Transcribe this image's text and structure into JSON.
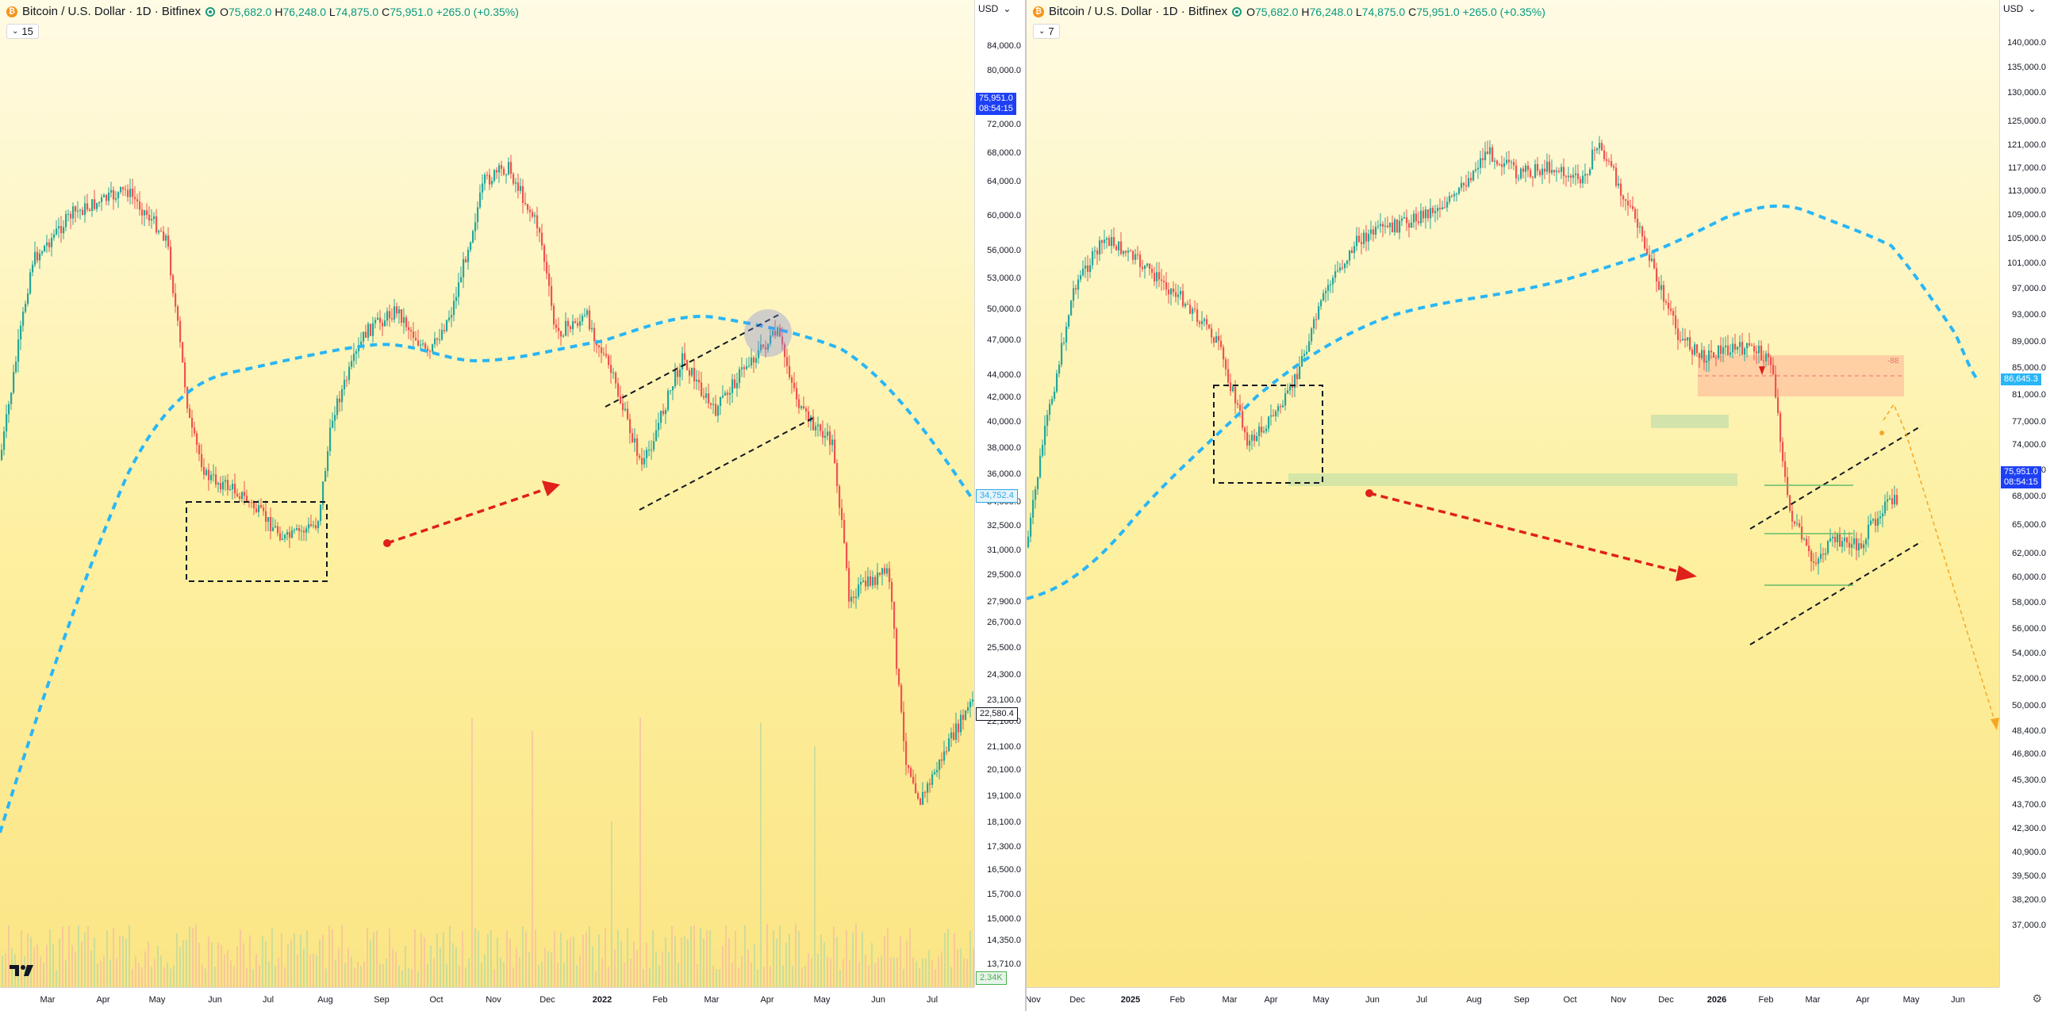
{
  "left_pane": {
    "title": "Bitcoin / U.S. Dollar · 1D · Bitfinex",
    "ohlc": {
      "o_label": "O",
      "o": "75,682.0",
      "h_label": "H",
      "h": "76,248.0",
      "l_label": "L",
      "l": "74,875.0",
      "c_label": "C",
      "c": "75,951.0",
      "change": "+265.0 (+0.35%)"
    },
    "indicator_count": "15",
    "currency": "USD",
    "price_tag": {
      "price": "75,951.0",
      "countdown": "08:54:15"
    },
    "ma_tag": "34,752.4",
    "cursor_tag": "22,580.4",
    "volume_tag": "2.34K",
    "y_ticks": [
      "84,000.0",
      "80,000.0",
      "72,000.0",
      "68,000.0",
      "64,000.0",
      "60,000.0",
      "56,000.0",
      "53,000.0",
      "50,000.0",
      "47,000.0",
      "44,000.0",
      "42,000.0",
      "40,000.0",
      "38,000.0",
      "36,000.0",
      "34,000.0",
      "32,500.0",
      "31,000.0",
      "29,500.0",
      "27,900.0",
      "26,700.0",
      "25,500.0",
      "24,300.0",
      "23,100.0",
      "22,100.0",
      "21,100.0",
      "20,100.0",
      "19,100.0",
      "18,100.0",
      "17,300.0",
      "16,500.0",
      "15,700.0",
      "15,000.0",
      "14,350.0",
      "13,710.0"
    ],
    "x_ticks": [
      {
        "label": "Mar",
        "bold": false
      },
      {
        "label": "Apr",
        "bold": false
      },
      {
        "label": "May",
        "bold": false
      },
      {
        "label": "Jun",
        "bold": false
      },
      {
        "label": "Jul",
        "bold": false
      },
      {
        "label": "Aug",
        "bold": false
      },
      {
        "label": "Sep",
        "bold": false
      },
      {
        "label": "Oct",
        "bold": false
      },
      {
        "label": "Nov",
        "bold": false
      },
      {
        "label": "Dec",
        "bold": false
      },
      {
        "label": "2022",
        "bold": true
      },
      {
        "label": "Feb",
        "bold": false
      },
      {
        "label": "Mar",
        "bold": false
      },
      {
        "label": "Apr",
        "bold": false
      },
      {
        "label": "May",
        "bold": false
      },
      {
        "label": "Jun",
        "bold": false
      },
      {
        "label": "Jul",
        "bold": false
      }
    ]
  },
  "right_pane": {
    "title": "Bitcoin / U.S. Dollar · 1D · Bitfinex",
    "ohlc": {
      "o_label": "O",
      "o": "75,682.0",
      "h_label": "H",
      "h": "76,248.0",
      "l_label": "L",
      "l": "74,875.0",
      "c_label": "C",
      "c": "75,951.0",
      "change": "+265.0 (+0.35%)"
    },
    "indicator_count": "7",
    "currency": "USD",
    "price_tag": {
      "price": "75,951.0",
      "countdown": "08:54:15"
    },
    "ma_tag": "86,645.3",
    "ma_label": "-88",
    "y_ticks": [
      "140,000.0",
      "135,000.0",
      "130,000.0",
      "125,000.0",
      "121,000.0",
      "117,000.0",
      "113,000.0",
      "109,000.0",
      "105,000.0",
      "101,000.0",
      "97,000.0",
      "93,000.0",
      "89,000.0",
      "85,000.0",
      "81,000.0",
      "77,000.0",
      "74,000.0",
      "71,000.0",
      "68,000.0",
      "65,000.0",
      "62,000.0",
      "60,000.0",
      "58,000.0",
      "56,000.0",
      "54,000.0",
      "52,000.0",
      "50,000.0",
      "48,400.0",
      "46,800.0",
      "45,300.0",
      "43,700.0",
      "42,300.0",
      "40,900.0",
      "39,500.0",
      "38,200.0",
      "37,000.0"
    ],
    "x_ticks": [
      {
        "label": "Nov",
        "bold": false
      },
      {
        "label": "Dec",
        "bold": false
      },
      {
        "label": "2025",
        "bold": true
      },
      {
        "label": "Feb",
        "bold": false
      },
      {
        "label": "Mar",
        "bold": false
      },
      {
        "label": "Apr",
        "bold": false
      },
      {
        "label": "May",
        "bold": false
      },
      {
        "label": "Jun",
        "bold": false
      },
      {
        "label": "Jul",
        "bold": false
      },
      {
        "label": "Aug",
        "bold": false
      },
      {
        "label": "Sep",
        "bold": false
      },
      {
        "label": "Oct",
        "bold": false
      },
      {
        "label": "Nov",
        "bold": false
      },
      {
        "label": "Dec",
        "bold": false
      },
      {
        "label": "2026",
        "bold": true
      },
      {
        "label": "Feb",
        "bold": false
      },
      {
        "label": "Mar",
        "bold": false
      },
      {
        "label": "Apr",
        "bold": false
      },
      {
        "label": "May",
        "bold": false
      },
      {
        "label": "Jun",
        "bold": false
      }
    ]
  },
  "colors": {
    "up": "#26a69a",
    "down": "#ef5350",
    "ma": "#29b6f6",
    "arrow": "#e0201a",
    "accent": "#1e40f5",
    "zone_green": "#a5d6a7",
    "zone_red": "#ffab91"
  },
  "icons": {
    "coin": "bitcoin-coin-icon",
    "status": "live-status-icon",
    "chevron": "chevron-down-icon",
    "logo": "tradingview-logo-icon",
    "settings": "settings-gear-icon"
  }
}
